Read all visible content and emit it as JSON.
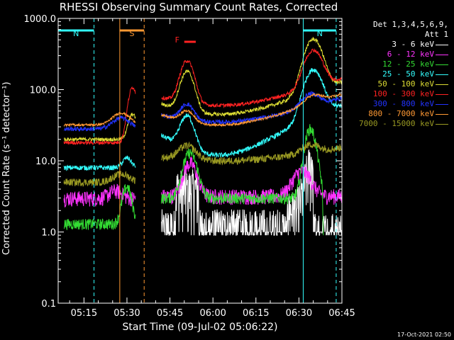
{
  "chart_data": {
    "type": "line",
    "title": "RHESSI Observing Summary Count Rates, Corrected",
    "ylabel": "Corrected Count Rate (s⁻¹ detector⁻¹)",
    "xlabel": "Start Time (09-Jul-02 05:06:22)",
    "yscale": "log",
    "ylim": [
      0.1,
      1000
    ],
    "y_ticks": [
      0.1,
      1,
      10,
      100,
      1000
    ],
    "y_tick_labels": [
      "0.1",
      "1.0",
      "10.0",
      "100.0",
      "1000.0"
    ],
    "xlim_min": [
      0,
      99
    ],
    "x_ticks_min": [
      9,
      24,
      39,
      54,
      69,
      84,
      99
    ],
    "x_tick_labels": [
      "05:15",
      "05:30",
      "05:45",
      "06:00",
      "06:15",
      "06:30",
      "06:45"
    ],
    "legend_header": [
      "Det 1,3,4,5,6,9,",
      "Att 1"
    ],
    "series": [
      {
        "name": "3 - 6 keV",
        "color": "#ffffff"
      },
      {
        "name": "6 - 12 keV",
        "color": "#ff33ff"
      },
      {
        "name": "12 - 25 keV",
        "color": "#33dd33"
      },
      {
        "name": "25 - 50 keV",
        "color": "#33ffff"
      },
      {
        "name": "50 - 100 keV",
        "color": "#dddd33"
      },
      {
        "name": "100 - 300 keV",
        "color": "#ff2222"
      },
      {
        "name": "300 - 800 keV",
        "color": "#2233ff"
      },
      {
        "name": "800 - 7000 keV",
        "color": "#ff9933"
      },
      {
        "name": "7000 - 15000 keV",
        "color": "#999922"
      }
    ],
    "annotations": [
      {
        "label": "N",
        "color": "#33ffff",
        "from_min": 0,
        "to_min": 12.5
      },
      {
        "label": "N",
        "color": "#33ffff",
        "from_min": 85.5,
        "to_min": 97
      },
      {
        "label": "S",
        "color": "#ff9933",
        "from_min": 21.5,
        "to_min": 30
      },
      {
        "label": "F",
        "color": "#ff2222",
        "from_min": 44,
        "to_min": 48
      }
    ]
  },
  "timestamp": "17-Oct-2021 02:50"
}
